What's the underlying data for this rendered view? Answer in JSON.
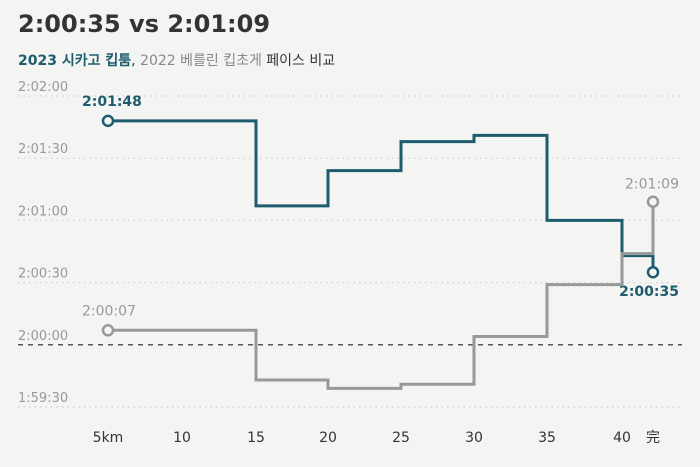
{
  "header": {
    "title": "2:00:35 vs 2:01:09",
    "subtitle_a": "2023 시카고 킵툼",
    "subtitle_sep": ", ",
    "subtitle_b": "2022 베를린 킵초게",
    "subtitle_c": " 페이스 비교"
  },
  "colors": {
    "kiptum": "#1d5c6e",
    "kipchoge": "#999999",
    "grid": "#cfcfcf",
    "baseline": "#222222"
  },
  "chart_data": {
    "type": "line",
    "step": true,
    "title": "2:00:35 vs 2:01:09",
    "xlabel": "",
    "ylabel": "",
    "x": [
      5,
      10,
      15,
      20,
      25,
      30,
      35,
      40,
      42.195
    ],
    "x_tick_labels": [
      "5km",
      "10",
      "15",
      "20",
      "25",
      "30",
      "35",
      "40",
      "完"
    ],
    "y_tick_values": [
      7170,
      7200,
      7230,
      7260,
      7290,
      7320
    ],
    "y_tick_labels": [
      "1:59:30",
      "2:00:00",
      "2:00:30",
      "2:01:00",
      "2:01:30",
      "2:02:00"
    ],
    "ylim": [
      7170,
      7320
    ],
    "baseline": 7200,
    "series": [
      {
        "name": "2023 시카고 킵툼",
        "color": "#1d5c6e",
        "values": [
          7308,
          7308,
          7267,
          7284,
          7298,
          7301,
          7260,
          7243,
          7235
        ],
        "start_label": "2:01:48",
        "end_label": "2:00:35"
      },
      {
        "name": "2022 베를린 킵초게",
        "color": "#999999",
        "values": [
          7207,
          7207,
          7183,
          7179,
          7181,
          7204,
          7229,
          7244,
          7269
        ],
        "start_label": "2:00:07",
        "end_label": "2:01:09"
      }
    ]
  }
}
